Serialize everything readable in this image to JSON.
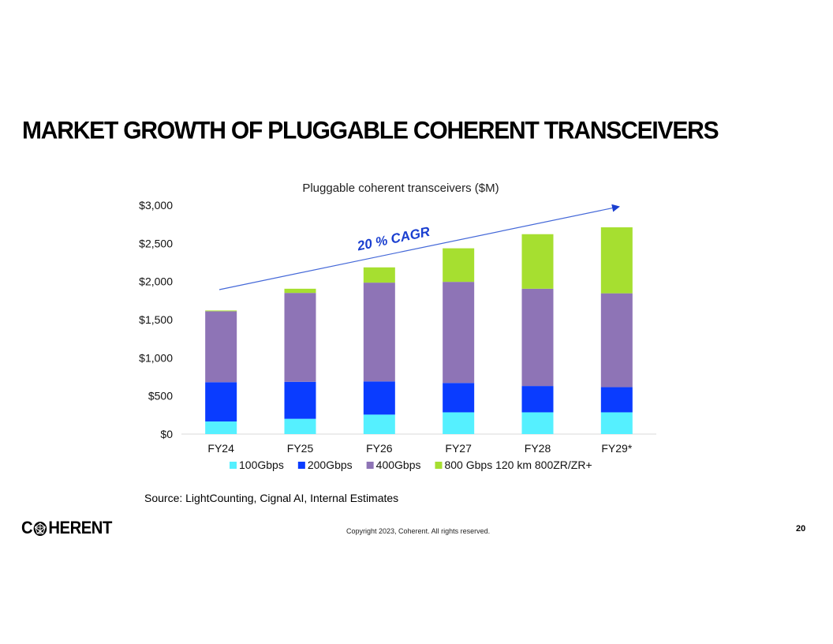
{
  "slide": {
    "title": "MARKET GROWTH OF PLUGGABLE COHERENT TRANSCEIVERS",
    "source": "Source: LightCounting, Cignal AI,  Internal Estimates",
    "logo_text": "HERENT",
    "logo_initial": "C",
    "copyright": "Copyright 2023, Coherent. All rights reserved.",
    "page_number": "20"
  },
  "chart_data": {
    "type": "bar",
    "stacked": true,
    "title": "Pluggable coherent transceivers ($M)",
    "categories": [
      "FY24",
      "FY25",
      "FY26",
      "FY27",
      "FY28",
      "FY29*"
    ],
    "series": [
      {
        "name": "100Gbps",
        "color": "#55f0ff",
        "values": [
          165,
          200,
          255,
          285,
          285,
          285
        ]
      },
      {
        "name": "200Gbps",
        "color": "#0a3cff",
        "values": [
          515,
          485,
          435,
          385,
          345,
          330
        ]
      },
      {
        "name": "400Gbps",
        "color": "#8e74b6",
        "values": [
          930,
          1165,
          1295,
          1325,
          1275,
          1230
        ]
      },
      {
        "name": "800 Gbps 120 km 800ZR/ZR+",
        "color": "#a6df30",
        "values": [
          10,
          55,
          200,
          440,
          715,
          865
        ]
      }
    ],
    "y_ticks": [
      "$0",
      "$500",
      "$1,000",
      "$1,500",
      "$2,000",
      "$2,500",
      "$3,000"
    ],
    "ylim": [
      0,
      3000
    ],
    "annotation": "20 % CAGR",
    "annotation_color": "#1a3fd0",
    "arrow_color": "#4468d8",
    "legend_position": "bottom"
  }
}
